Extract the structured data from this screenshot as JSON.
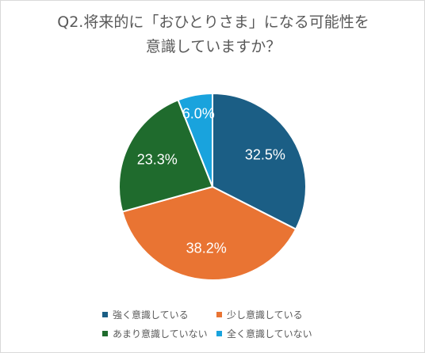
{
  "chart_data": {
    "type": "pie",
    "title_lines": [
      "Q2.将来的に「おひとりさま」になる可能性を",
      "意識していますか？"
    ],
    "slices": [
      {
        "label": "強く意識している",
        "value": 32.5,
        "value_label": "32.5%",
        "color": "#1b5e85"
      },
      {
        "label": "少し意識している",
        "value": 38.2,
        "value_label": "38.2%",
        "color": "#e97433"
      },
      {
        "label": "あまり意識していない",
        "value": 23.3,
        "value_label": "23.3%",
        "color": "#1f6b2d"
      },
      {
        "label": "全く意識していない",
        "value": 6.0,
        "value_label": "6.0%",
        "color": "#19a3dd"
      }
    ],
    "start_angle": "12 o'clock",
    "direction": "clockwise",
    "legend_position": "bottom"
  }
}
